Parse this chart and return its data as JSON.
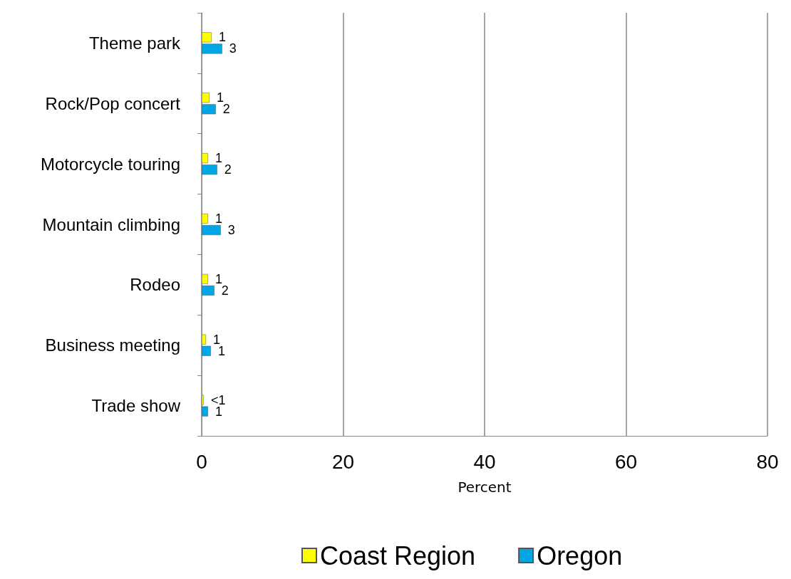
{
  "chart_data": {
    "type": "bar",
    "orientation": "horizontal",
    "xlabel": "Percent",
    "categories": [
      "Theme park",
      "Rock/Pop concert",
      "Motorcycle touring",
      "Mountain climbing",
      "Rodeo",
      "Business meeting",
      "Trade show"
    ],
    "series": [
      {
        "name": "Coast Region",
        "color": "#ffff00",
        "values": [
          1.4,
          1.1,
          0.9,
          0.9,
          0.9,
          0.6,
          0.3
        ],
        "value_labels": [
          "1",
          "1",
          "1",
          "1",
          "1",
          "1",
          "<1"
        ]
      },
      {
        "name": "Oregon",
        "color": "#00a6e6",
        "values": [
          2.9,
          2.0,
          2.2,
          2.7,
          1.8,
          1.3,
          0.9
        ],
        "value_labels": [
          "3",
          "2",
          "2",
          "3",
          "2",
          "1",
          "1"
        ]
      }
    ],
    "xlim": [
      0,
      80
    ],
    "xticks": [
      0,
      20,
      40,
      60,
      80
    ],
    "grid": "x",
    "legend": "bottom"
  }
}
